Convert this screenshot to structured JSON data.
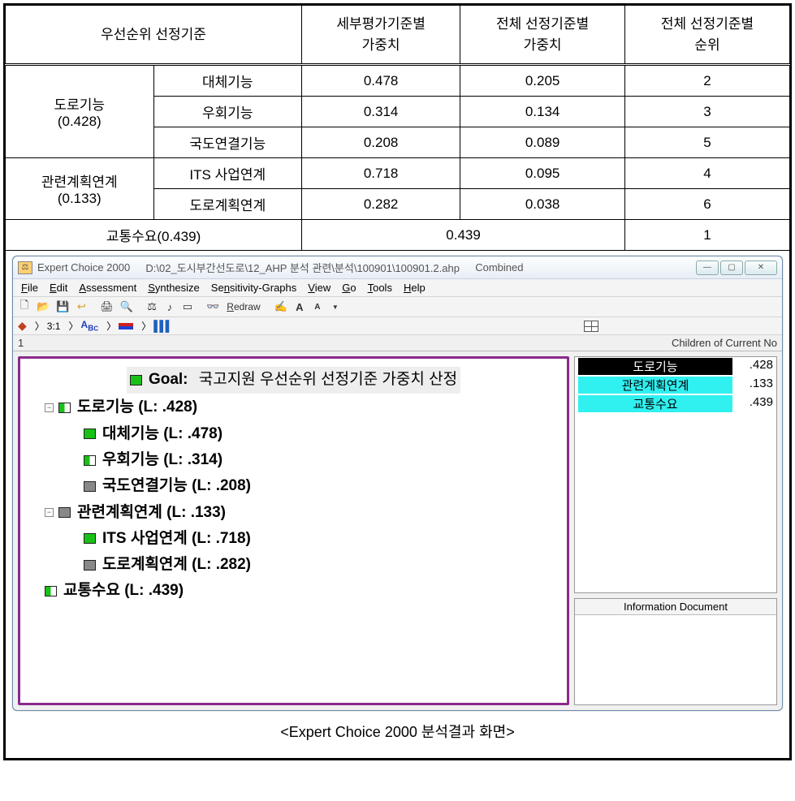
{
  "table": {
    "headers": {
      "c1": "우선순위 선정기준",
      "c2": "세부평가기준별\n가중치",
      "c3": "전체 선정기준별\n가중치",
      "c4": "전체 선정기준별\n순위"
    },
    "groups": [
      {
        "label_l1": "도로기능",
        "label_l2": "(0.428)",
        "rows": [
          {
            "name": "대체기능",
            "w1": "0.478",
            "w2": "0.205",
            "rank": "2"
          },
          {
            "name": "우회기능",
            "w1": "0.314",
            "w2": "0.134",
            "rank": "3"
          },
          {
            "name": "국도연결기능",
            "w1": "0.208",
            "w2": "0.089",
            "rank": "5"
          }
        ]
      },
      {
        "label_l1": "관련계획연계",
        "label_l2": "(0.133)",
        "rows": [
          {
            "name": "ITS 사업연계",
            "w1": "0.718",
            "w2": "0.095",
            "rank": "4"
          },
          {
            "name": "도로계획연계",
            "w1": "0.282",
            "w2": "0.038",
            "rank": "6"
          }
        ]
      }
    ],
    "last": {
      "name": "교통수요(0.439)",
      "w": "0.439",
      "rank": "1"
    }
  },
  "app": {
    "title_app": "Expert Choice 2000",
    "title_path": "D:\\02_도시부간선도로\\12_AHP 분석 관련\\분석\\100901\\100901.2.ahp",
    "title_mode": "Combined",
    "menu": {
      "file": "File",
      "edit": "Edit",
      "assess": "Assessment",
      "synth": "Synthesize",
      "sens": "Sensitivity-Graphs",
      "view": "View",
      "go": "Go",
      "tools": "Tools",
      "help": "Help"
    },
    "redraw": "Redraw",
    "tabs": {
      "ratio": "3:1",
      "abc": "ABC"
    },
    "status_left": "1",
    "status_right": "Children of Current No",
    "info_title": "Information Document",
    "tree": {
      "goal_prefix": "Goal:",
      "goal": "국고지원 우선순위 선정기준 가중치 산정",
      "n1": "도로기능 (L: .428)",
      "n1a": "대체기능 (L: .478)",
      "n1b": "우회기능 (L: .314)",
      "n1c": "국도연결기능 (L: .208)",
      "n2": "관련계획연계 (L: .133)",
      "n2a": "ITS 사업연계 (L: .718)",
      "n2b": "도로계획연계 (L: .282)",
      "n3": "교통수요 (L: .439)"
    },
    "children": [
      {
        "label": "도로기능",
        "val": ".428",
        "style": "hl-blk"
      },
      {
        "label": "관련계획연계",
        "val": ".133",
        "style": "hl-cyan"
      },
      {
        "label": "교통수요",
        "val": ".439",
        "style": "hl-cyan"
      }
    ]
  },
  "caption": "<Expert Choice 2000 분석결과 화면>"
}
